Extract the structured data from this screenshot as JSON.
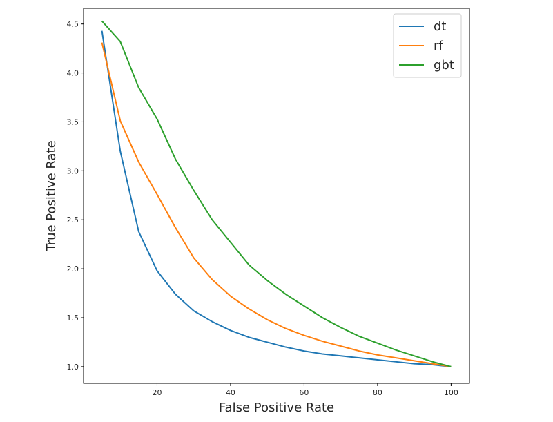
{
  "chart_data": {
    "type": "line",
    "title": "",
    "xlabel": "False Positive Rate",
    "ylabel": "True Positive Rate",
    "xlim": [
      0,
      105
    ],
    "ylim": [
      0.83,
      4.66
    ],
    "xticks": [
      20,
      40,
      60,
      80,
      100
    ],
    "yticks": [
      1.0,
      1.5,
      2.0,
      2.5,
      3.0,
      3.5,
      4.0,
      4.5
    ],
    "grid": false,
    "legend_position": "top-right",
    "x": [
      5,
      10,
      15,
      20,
      25,
      30,
      35,
      40,
      45,
      50,
      55,
      60,
      65,
      70,
      75,
      80,
      85,
      90,
      95,
      100
    ],
    "series": [
      {
        "name": "dt",
        "color": "#1f77b4",
        "values": [
          4.43,
          3.2,
          2.38,
          1.98,
          1.74,
          1.57,
          1.46,
          1.37,
          1.3,
          1.25,
          1.2,
          1.16,
          1.13,
          1.11,
          1.09,
          1.07,
          1.05,
          1.03,
          1.02,
          1.0
        ]
      },
      {
        "name": "rf",
        "color": "#ff7f0e",
        "values": [
          4.31,
          3.51,
          3.09,
          2.76,
          2.42,
          2.11,
          1.89,
          1.72,
          1.59,
          1.48,
          1.39,
          1.32,
          1.26,
          1.21,
          1.16,
          1.12,
          1.09,
          1.06,
          1.03,
          1.0
        ]
      },
      {
        "name": "gbt",
        "color": "#2ca02c",
        "values": [
          4.53,
          4.32,
          3.85,
          3.53,
          3.12,
          2.8,
          2.5,
          2.27,
          2.04,
          1.88,
          1.74,
          1.62,
          1.5,
          1.4,
          1.31,
          1.24,
          1.17,
          1.11,
          1.05,
          1.0
        ]
      }
    ]
  }
}
